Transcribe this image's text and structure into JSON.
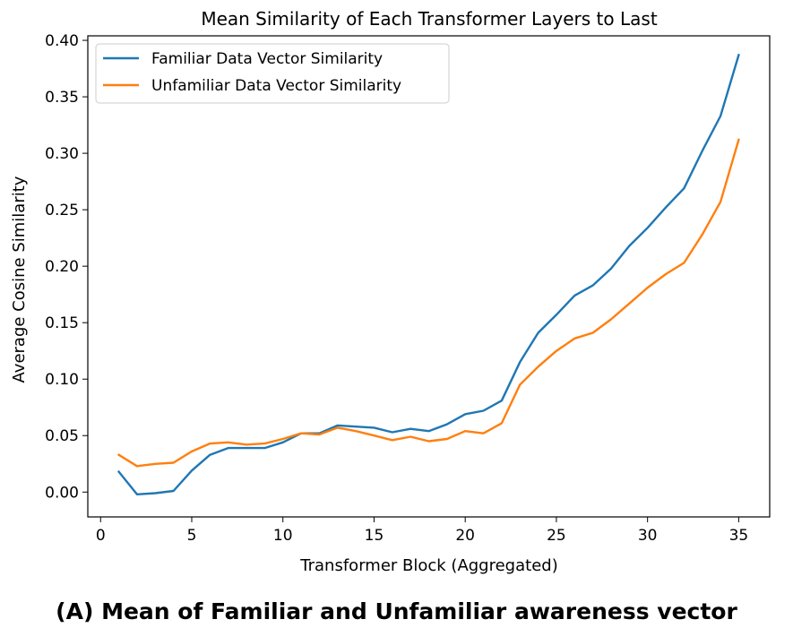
{
  "caption": "(A) Mean of Familiar and Unfamiliar awareness vector",
  "chart_data": {
    "type": "line",
    "title": "Mean Similarity of Each Transformer Layers to Last",
    "xlabel": "Transformer Block (Aggregated)",
    "ylabel": "Average Cosine Similarity",
    "xlim": [
      -0.7,
      36.7
    ],
    "ylim": [
      -0.022,
      0.404
    ],
    "xticks": [
      0,
      5,
      10,
      15,
      20,
      25,
      30,
      35
    ],
    "yticks": [
      0.0,
      0.05,
      0.1,
      0.15,
      0.2,
      0.25,
      0.3,
      0.35,
      0.4
    ],
    "ytick_labels": [
      "0.00",
      "0.05",
      "0.10",
      "0.15",
      "0.20",
      "0.25",
      "0.30",
      "0.35",
      "0.40"
    ],
    "legend_position": "top-left",
    "grid": false,
    "x": [
      1,
      2,
      3,
      4,
      5,
      6,
      7,
      8,
      9,
      10,
      11,
      12,
      13,
      14,
      15,
      16,
      17,
      18,
      19,
      20,
      21,
      22,
      23,
      24,
      25,
      26,
      27,
      28,
      29,
      30,
      31,
      32,
      33,
      34,
      35
    ],
    "series": [
      {
        "name": "Familiar Data Vector Similarity",
        "color": "#1f77b4",
        "values": [
          0.018,
          -0.002,
          -0.001,
          0.001,
          0.019,
          0.033,
          0.039,
          0.039,
          0.039,
          0.044,
          0.052,
          0.052,
          0.059,
          0.058,
          0.057,
          0.053,
          0.056,
          0.054,
          0.06,
          0.069,
          0.072,
          0.081,
          0.115,
          0.141,
          0.157,
          0.174,
          0.183,
          0.198,
          0.218,
          0.234,
          0.252,
          0.269,
          0.302,
          0.333,
          0.387
        ]
      },
      {
        "name": "Unfamiliar Data Vector Similarity",
        "color": "#ff7f0e",
        "values": [
          0.033,
          0.023,
          0.025,
          0.026,
          0.036,
          0.043,
          0.044,
          0.042,
          0.043,
          0.047,
          0.052,
          0.051,
          0.057,
          0.054,
          0.05,
          0.046,
          0.049,
          0.045,
          0.047,
          0.054,
          0.052,
          0.061,
          0.095,
          0.111,
          0.125,
          0.136,
          0.141,
          0.153,
          0.167,
          0.181,
          0.193,
          0.203,
          0.228,
          0.257,
          0.312
        ]
      }
    ]
  }
}
